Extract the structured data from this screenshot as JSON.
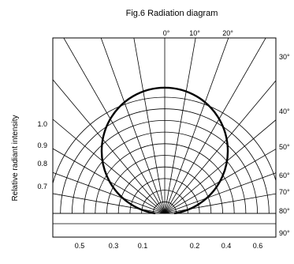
{
  "chart_data": {
    "type": "line",
    "title": "Fig.6 Radiation diagram",
    "ylabel": "Relative radiant intensity",
    "top_angle_ticks": [
      "0°",
      "10°",
      "20°"
    ],
    "right_angle_ticks": [
      "30°",
      "40°",
      "50°",
      "60°",
      "70°",
      "80°",
      "90°"
    ],
    "left_intensity_ticks": [
      "1.0",
      "0.9",
      "0.8",
      "0.7"
    ],
    "bottom_left_ticks": [
      "0.5",
      "0.3",
      "0.1"
    ],
    "bottom_right_ticks": [
      "0.2",
      "0.4",
      "0.6"
    ],
    "grid": {
      "radial_step_deg": 10,
      "circle_values": [
        0.1,
        0.2,
        0.3,
        0.4,
        0.5,
        0.6,
        0.7,
        0.8,
        0.9,
        1.0
      ]
    },
    "series": [
      {
        "angle_deg": [
          0,
          10,
          20,
          30,
          40,
          50,
          60,
          70,
          80,
          90
        ],
        "relative_intensity": [
          1.0,
          0.985,
          0.94,
          0.866,
          0.766,
          0.643,
          0.5,
          0.342,
          0.174,
          0.0
        ]
      }
    ]
  }
}
